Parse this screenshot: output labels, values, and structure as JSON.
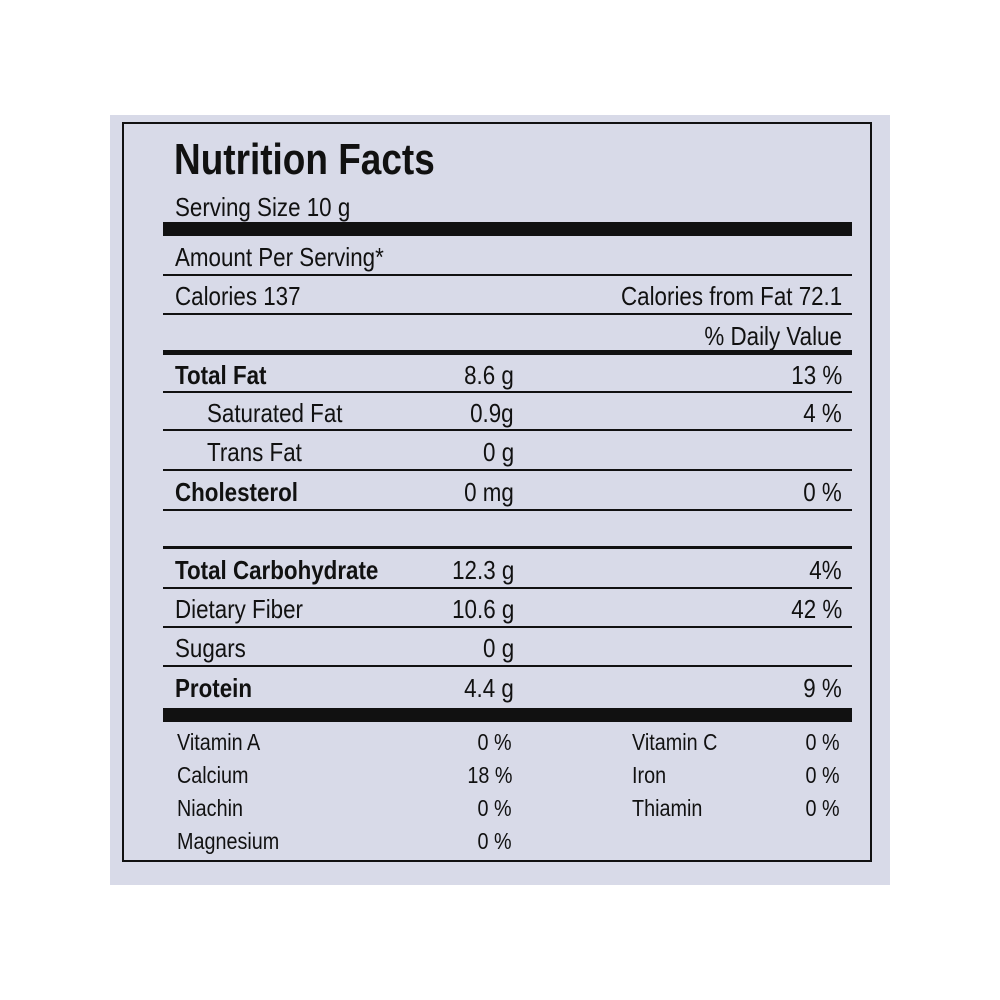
{
  "title": "Nutrition Facts",
  "serving_size": "Serving Size 10 g",
  "amount_per_serving": "Amount Per Serving*",
  "calories": "Calories 137",
  "calories_from_fat": "Calories from Fat 72.1",
  "daily_value_header": "% Daily Value",
  "nutrients": [
    {
      "name": "Total Fat",
      "amount": "8.6 g",
      "daily_value": "13 %"
    },
    {
      "name": "Saturated Fat",
      "amount": "0.9g",
      "daily_value": "4 %"
    },
    {
      "name": "Trans Fat",
      "amount": "0 g"
    },
    {
      "name": "Cholesterol",
      "amount": "0 mg",
      "daily_value": "0 %"
    },
    {
      "name": "Total Carbohydrate",
      "amount": "12.3 g",
      "daily_value": "4%"
    },
    {
      "name": "Dietary Fiber",
      "amount": "10.6 g",
      "daily_value": "42 %"
    },
    {
      "name": "Sugars",
      "amount": "0 g"
    },
    {
      "name": "Protein",
      "amount": "4.4 g",
      "daily_value": "9 %"
    }
  ],
  "vitamins": [
    [
      {
        "name": "Vitamin A",
        "value": "0 %"
      },
      {
        "name": "Vitamin C",
        "value": "0 %"
      }
    ],
    [
      {
        "name": "Calcium",
        "value": "18 %"
      },
      {
        "name": "Iron",
        "value": "0 %"
      }
    ],
    [
      {
        "name": "Niachin",
        "value": "0 %"
      },
      {
        "name": "Thiamin",
        "value": "0 %"
      }
    ],
    [
      {
        "name": "Magnesium",
        "value": "0 %"
      }
    ]
  ]
}
